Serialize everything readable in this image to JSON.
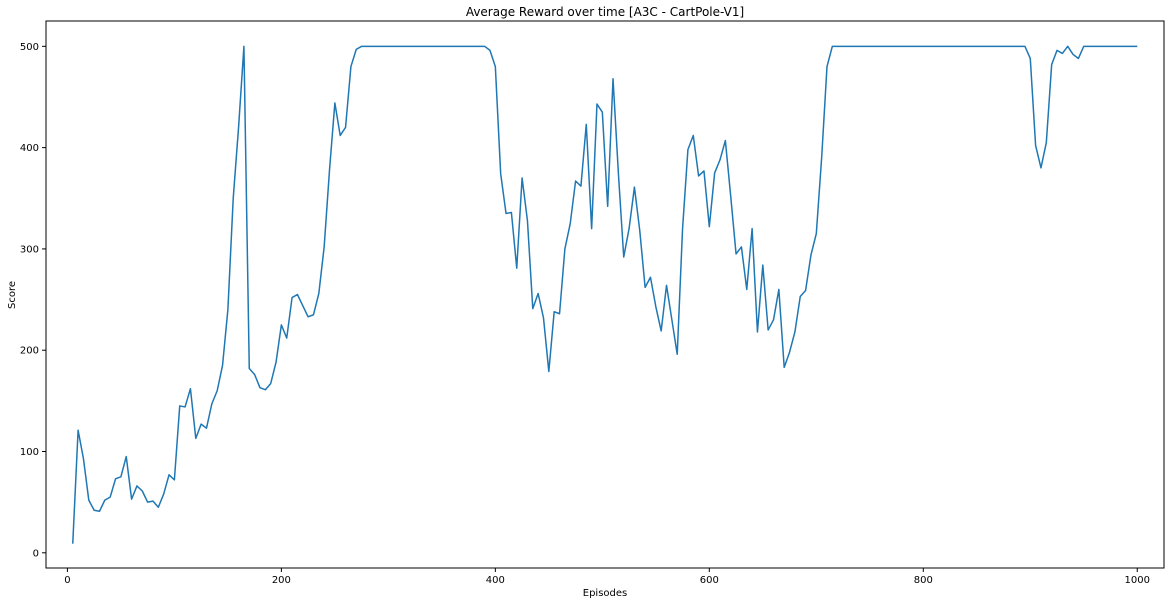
{
  "chart_data": {
    "type": "line",
    "title": "Average Reward over time [A3C - CartPole-V1]",
    "xlabel": "Episodes",
    "ylabel": "Score",
    "xlim": [
      -20,
      1025
    ],
    "ylim": [
      -15,
      525
    ],
    "xticks": [
      0,
      200,
      400,
      600,
      800,
      1000
    ],
    "yticks": [
      0,
      100,
      200,
      300,
      400,
      500
    ],
    "grid": false,
    "series": [
      {
        "color": "#1f77b4",
        "x": [
          5,
          10,
          15,
          20,
          25,
          30,
          35,
          40,
          45,
          50,
          55,
          60,
          65,
          70,
          75,
          80,
          85,
          90,
          95,
          100,
          105,
          110,
          115,
          120,
          125,
          130,
          135,
          140,
          145,
          150,
          155,
          160,
          165,
          170,
          175,
          180,
          185,
          190,
          195,
          200,
          205,
          210,
          215,
          220,
          225,
          230,
          235,
          240,
          245,
          250,
          255,
          260,
          265,
          270,
          275,
          280,
          285,
          290,
          295,
          300,
          305,
          310,
          315,
          320,
          325,
          330,
          335,
          340,
          345,
          350,
          355,
          360,
          365,
          370,
          375,
          380,
          385,
          390,
          395,
          400,
          405,
          410,
          415,
          420,
          425,
          430,
          435,
          440,
          445,
          450,
          455,
          460,
          465,
          470,
          475,
          480,
          485,
          490,
          495,
          500,
          505,
          510,
          515,
          520,
          525,
          530,
          535,
          540,
          545,
          550,
          555,
          560,
          565,
          570,
          575,
          580,
          585,
          590,
          595,
          600,
          605,
          610,
          615,
          620,
          625,
          630,
          635,
          640,
          645,
          650,
          655,
          660,
          665,
          670,
          675,
          680,
          685,
          690,
          695,
          700,
          705,
          710,
          715,
          720,
          725,
          730,
          735,
          740,
          745,
          750,
          755,
          760,
          765,
          770,
          775,
          780,
          785,
          790,
          795,
          800,
          805,
          810,
          815,
          820,
          825,
          830,
          835,
          840,
          845,
          850,
          855,
          860,
          865,
          870,
          875,
          880,
          885,
          890,
          895,
          900,
          905,
          910,
          915,
          920,
          925,
          930,
          935,
          940,
          945,
          950,
          955,
          960,
          965,
          970,
          975,
          980,
          985,
          990,
          995,
          1000
        ],
        "values": [
          9,
          121,
          93,
          52,
          42,
          41,
          52,
          55,
          73,
          75,
          95,
          53,
          66,
          61,
          50,
          51,
          45,
          58,
          77,
          72,
          145,
          144,
          162,
          113,
          127,
          123,
          147,
          160,
          185,
          240,
          350,
          420,
          500,
          182,
          176,
          163,
          161,
          167,
          188,
          225,
          212,
          252,
          255,
          244,
          233,
          235,
          256,
          302,
          378,
          444,
          412,
          420,
          480,
          497,
          500,
          500,
          500,
          500,
          500,
          500,
          500,
          500,
          500,
          500,
          500,
          500,
          500,
          500,
          500,
          500,
          500,
          500,
          500,
          500,
          500,
          500,
          500,
          500,
          496,
          480,
          374,
          335,
          336,
          281,
          370,
          328,
          241,
          256,
          232,
          179,
          238,
          236,
          300,
          325,
          367,
          362,
          423,
          320,
          443,
          435,
          342,
          468,
          375,
          292,
          320,
          361,
          318,
          262,
          272,
          243,
          219,
          264,
          230,
          196,
          320,
          398,
          412,
          372,
          377,
          322,
          375,
          388,
          407,
          352,
          295,
          302,
          260,
          320,
          218,
          284,
          220,
          230,
          260,
          183,
          198,
          218,
          253,
          259,
          294,
          315,
          390,
          480,
          500,
          500,
          500,
          500,
          500,
          500,
          500,
          500,
          500,
          500,
          500,
          500,
          500,
          500,
          500,
          500,
          500,
          500,
          500,
          500,
          500,
          500,
          500,
          500,
          500,
          500,
          500,
          500,
          500,
          500,
          500,
          500,
          500,
          500,
          500,
          500,
          500,
          488,
          402,
          380,
          405,
          482,
          496,
          493,
          500,
          492,
          488,
          500,
          500,
          500,
          500,
          500,
          500,
          500,
          500,
          500,
          500,
          500
        ]
      }
    ]
  }
}
